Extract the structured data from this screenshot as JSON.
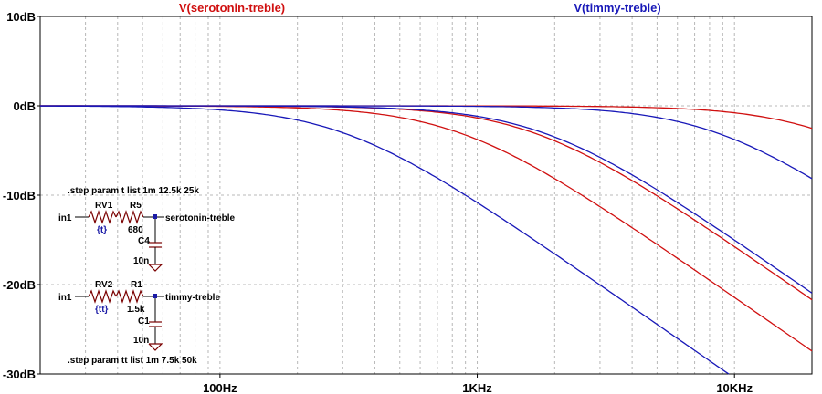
{
  "chart_data": {
    "type": "line",
    "title": "",
    "xlabel": "",
    "ylabel": "",
    "x_scale": "log",
    "xlim": [
      20,
      20000
    ],
    "ylim": [
      -30,
      10
    ],
    "grid": true,
    "x_tick_labels": [
      "100Hz",
      "1KHz",
      "10KHz"
    ],
    "x_tick_values": [
      100,
      1000,
      10000
    ],
    "y_tick_labels": [
      "10dB",
      "0dB",
      "-10dB",
      "-20dB",
      "-30dB"
    ],
    "y_tick_values": [
      10,
      0,
      -10,
      -20,
      -30
    ],
    "legend": [
      {
        "name": "V(serotonin-treble)",
        "color": "#d01010"
      },
      {
        "name": "V(timmy-treble)",
        "color": "#1818b8"
      }
    ],
    "series": [
      {
        "name": "V(serotonin-treble)",
        "color": "#d01010",
        "fc": 22500
      },
      {
        "name": "V(serotonin-treble)",
        "color": "#d01010",
        "fc": 1650
      },
      {
        "name": "V(serotonin-treble)",
        "color": "#d01010",
        "fc": 850
      },
      {
        "name": "V(timmy-treble)",
        "color": "#1818b8",
        "fc": 8500
      },
      {
        "name": "V(timmy-treble)",
        "color": "#1818b8",
        "fc": 1800
      },
      {
        "name": "V(timmy-treble)",
        "color": "#1818b8",
        "fc": 300
      }
    ]
  },
  "schematic": {
    "step1": ".step param t list 1m 12.5k 25k",
    "in1a": "in1",
    "rv1": "RV1",
    "rv1_val": "{t}",
    "r5": "R5",
    "r5_val": "680",
    "c4": "C4",
    "c4_val": "10n",
    "net1": "serotonin-treble",
    "in1b": "in1",
    "rv2": "RV2",
    "rv2_val": "{tt}",
    "r1": "R1",
    "r1_val": "1.5k",
    "c1": "C1",
    "c1_val": "10n",
    "net2": "timmy-treble",
    "step2": ".step param tt list 1m 7.5k 50k"
  }
}
